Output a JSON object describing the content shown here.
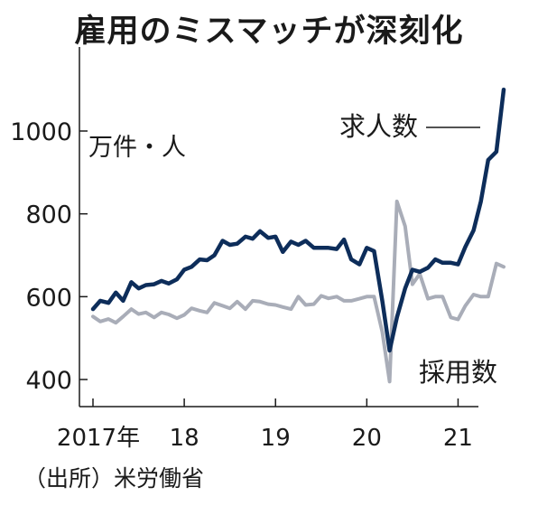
{
  "title": "雇用のミスマッチが深刻化",
  "source": "（出所）米労働省",
  "colors": {
    "job_openings": "#0d2d5a",
    "hires": "#a9adb8",
    "axis": "#1a1a1a"
  },
  "chart_data": {
    "type": "line",
    "title": "雇用のミスマッチが深刻化",
    "unit_label": "万件・人",
    "ylim": [
      400,
      1100
    ],
    "yticks": [
      400,
      600,
      800,
      1000
    ],
    "xlim": [
      2017.0,
      2021.5
    ],
    "xticks": [
      {
        "x": 2017,
        "label": "2017年"
      },
      {
        "x": 2018,
        "label": "18"
      },
      {
        "x": 2019,
        "label": "19"
      },
      {
        "x": 2020,
        "label": "20"
      },
      {
        "x": 2021,
        "label": "21"
      }
    ],
    "grid": false,
    "legend": "inline labels",
    "series": [
      {
        "name": "求人数",
        "color": "#0d2d5a",
        "x": [
          2017.0,
          2017.08,
          2017.17,
          2017.25,
          2017.33,
          2017.42,
          2017.5,
          2017.58,
          2017.67,
          2017.75,
          2017.83,
          2017.92,
          2018.0,
          2018.08,
          2018.17,
          2018.25,
          2018.33,
          2018.42,
          2018.5,
          2018.58,
          2018.67,
          2018.75,
          2018.83,
          2018.92,
          2019.0,
          2019.08,
          2019.17,
          2019.25,
          2019.33,
          2019.42,
          2019.5,
          2019.58,
          2019.67,
          2019.75,
          2019.83,
          2019.92,
          2020.0,
          2020.08,
          2020.17,
          2020.25,
          2020.33,
          2020.42,
          2020.5,
          2020.58,
          2020.67,
          2020.75,
          2020.83,
          2020.92,
          2021.0,
          2021.08,
          2021.17,
          2021.25,
          2021.33,
          2021.42,
          2021.5
        ],
        "values": [
          570,
          590,
          585,
          610,
          590,
          635,
          620,
          628,
          630,
          638,
          632,
          642,
          665,
          672,
          690,
          688,
          700,
          735,
          725,
          728,
          745,
          740,
          758,
          742,
          745,
          708,
          733,
          725,
          735,
          718,
          718,
          718,
          715,
          738,
          690,
          678,
          718,
          710,
          590,
          470,
          550,
          620,
          665,
          660,
          670,
          690,
          682,
          682,
          678,
          720,
          760,
          830,
          930,
          950,
          1100
        ]
      },
      {
        "name": "採用数",
        "color": "#a9adb8",
        "x": [
          2017.0,
          2017.08,
          2017.17,
          2017.25,
          2017.33,
          2017.42,
          2017.5,
          2017.58,
          2017.67,
          2017.75,
          2017.83,
          2017.92,
          2018.0,
          2018.08,
          2018.17,
          2018.25,
          2018.33,
          2018.42,
          2018.5,
          2018.58,
          2018.67,
          2018.75,
          2018.83,
          2018.92,
          2019.0,
          2019.08,
          2019.17,
          2019.25,
          2019.33,
          2019.42,
          2019.5,
          2019.58,
          2019.67,
          2019.75,
          2019.83,
          2019.92,
          2020.0,
          2020.08,
          2020.17,
          2020.25,
          2020.33,
          2020.42,
          2020.5,
          2020.58,
          2020.67,
          2020.75,
          2020.83,
          2020.92,
          2021.0,
          2021.08,
          2021.17,
          2021.25,
          2021.33,
          2021.42,
          2021.5
        ],
        "values": [
          552,
          540,
          546,
          537,
          552,
          570,
          558,
          562,
          550,
          562,
          557,
          548,
          556,
          572,
          566,
          562,
          585,
          578,
          572,
          588,
          570,
          590,
          588,
          582,
          580,
          575,
          570,
          600,
          580,
          582,
          602,
          596,
          600,
          590,
          590,
          595,
          600,
          600,
          515,
          395,
          830,
          770,
          630,
          655,
          595,
          600,
          600,
          550,
          545,
          578,
          605,
          600,
          600,
          680,
          672
        ]
      }
    ]
  }
}
